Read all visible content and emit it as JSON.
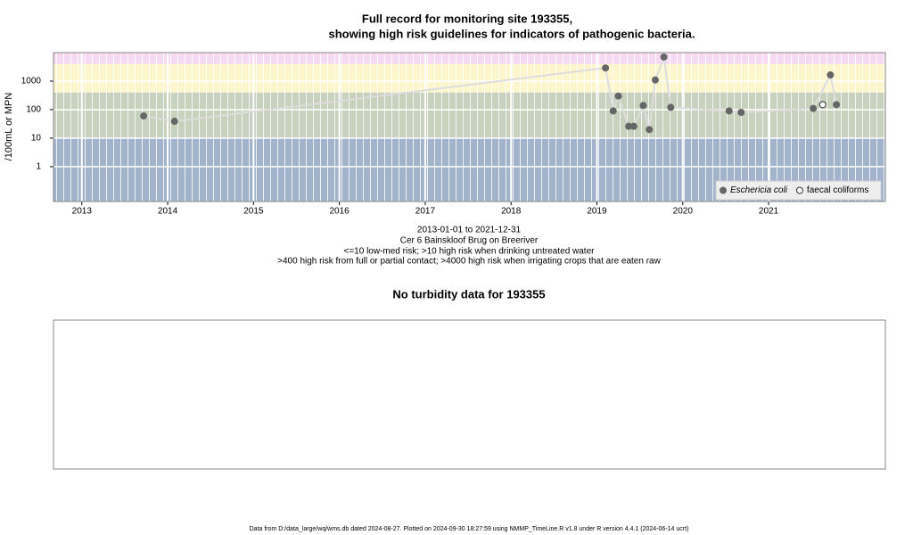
{
  "chart_data": {
    "type": "scatter",
    "title_line1": "Full record for monitoring site 193355,",
    "title_line2": "showing high risk guidelines for indicators of pathogenic bacteria.",
    "y_label": "/100mL or MPN",
    "caption": [
      "2013-01-01 to 2021-12-31",
      "Cer 6 Bainskloof Brug on Breeriver",
      "<=10 low-med risk; >10 high risk when drinking untreated water",
      ">400 high risk from full or partial contact; >4000 high risk when irrigating crops that are eaten raw"
    ],
    "log_y": true,
    "xlim": [
      2012.67,
      2022.36
    ],
    "xticks": [
      2013,
      2014,
      2015,
      2016,
      2017,
      2018,
      2019,
      2020,
      2021
    ],
    "ylim": [
      0.06,
      10000
    ],
    "yticks": [
      1,
      10,
      100,
      1000
    ],
    "grid": true,
    "guidelines": [
      10,
      400,
      4000
    ],
    "band_colors": [
      "#a3b3cc",
      "#c8d0be",
      "#fbf6cb",
      "#f5daf2"
    ],
    "legend_position": "bottom-right",
    "series": [
      {
        "name": "Eschericia coli",
        "color": "#666666",
        "line_color": "#dddddd",
        "filled": true,
        "x": [
          2013.72,
          2014.08,
          2019.1,
          2019.19,
          2019.25,
          2019.37,
          2019.43,
          2019.54,
          2019.61,
          2019.68,
          2019.78,
          2019.86,
          2020.54,
          2020.68,
          2021.52,
          2021.72,
          2021.79
        ],
        "values": [
          60,
          39,
          2900,
          90,
          300,
          26,
          26,
          140,
          20,
          1100,
          7000,
          120,
          90,
          80,
          110,
          1650,
          150
        ]
      },
      {
        "name": "faecal coliforms",
        "color": "#333333",
        "line_color": "#dddddd",
        "filled": false,
        "x": [
          2021.63
        ],
        "values": [
          150
        ]
      }
    ]
  },
  "turbidity_panel": {
    "title": "No turbidity data for 193355"
  },
  "footer": "Data from D:/data_large/wq/wms.db dated 2024-08-27. Plotted on 2024-09-30 18:27:59 using NMMP_TimeLine.R v1.8 under R version 4.4.1 (2024-06-14 ucrt)"
}
